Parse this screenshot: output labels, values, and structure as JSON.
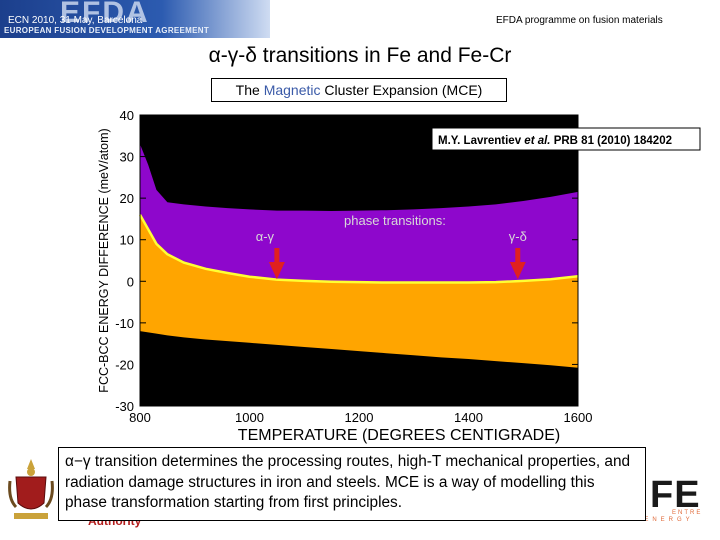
{
  "header": {
    "logo_text": "EFDA",
    "logo_subtitle": "EUROPEAN FUSION DEVELOPMENT AGREEMENT",
    "conference": "ECN 2010, 31 May, Barcelona",
    "programme": "EFDA programme on fusion materials"
  },
  "slide": {
    "title": "α-γ-δ transitions in Fe and Fe-Cr",
    "subtitle_pre": "The ",
    "subtitle_magnetic": "Magnetic",
    "subtitle_post": " Cluster Expansion (MCE)",
    "caption": "α−γ transition determines the processing routes, high-T mechanical properties, and radiation damage structures in iron and steels. MCE is a way of modelling this phase transformation starting from first principles."
  },
  "footer": {
    "authority_text": "Authority",
    "ccfe_big": "FE",
    "ccfe_small": "FUSION ENERGY",
    "ccfe_small2": "ENTRE"
  },
  "colors": {
    "banner": "#1c3f8c",
    "black_region": "#000000",
    "purple_band": "#8e07cc",
    "orange_band": "#ffa500",
    "curve": "#ffff33",
    "arrow": "#e02020",
    "annotation_text": "#d8d8d8"
  },
  "chart_data": {
    "type": "area",
    "xlabel": "TEMPERATURE (DEGREES CENTIGRADE)",
    "ylabel": "FCC-BCC ENERGY DIFFERENCE (meV/atom)",
    "xlim": [
      800,
      1600
    ],
    "ylim": [
      -30,
      40
    ],
    "xticks": [
      800,
      1000,
      1200,
      1400,
      1600
    ],
    "yticks": [
      -30,
      -20,
      -10,
      0,
      10,
      20,
      30,
      40
    ],
    "reference": "M.Y. Lavrentiev et al. PRB  81 (2010) 184202",
    "reference_parts": {
      "authors": "M.Y. Lavrentiev ",
      "etal": "et al.",
      "journal": " PRB  81 (2010) 184202"
    },
    "annotations": {
      "phase_transitions": "phase transitions:",
      "alpha_gamma": "α-γ",
      "gamma_delta": "γ-δ"
    },
    "transitions": [
      1050,
      1490
    ],
    "x": [
      800,
      815,
      830,
      850,
      880,
      920,
      960,
      1000,
      1050,
      1100,
      1150,
      1200,
      1250,
      1300,
      1350,
      1400,
      1450,
      1500,
      1550,
      1600
    ],
    "series": [
      {
        "name": "",
        "values": [
          33,
          28,
          22,
          19,
          18.5,
          18,
          17.6,
          17.3,
          17,
          17,
          16.9,
          17,
          17.1,
          17.3,
          17.6,
          18,
          18.5,
          19.3,
          20.3,
          21.5
        ]
      },
      {
        "name": "",
        "values": [
          16,
          12.5,
          9,
          6.5,
          4.5,
          3,
          2,
          1.1,
          0.4,
          0.1,
          -0.1,
          -0.2,
          -0.3,
          -0.3,
          -0.3,
          -0.3,
          -0.2,
          0.1,
          0.5,
          1.2
        ]
      },
      {
        "name": "",
        "values": [
          -12,
          -12.3,
          -12.6,
          -13,
          -13.5,
          -14,
          -14.4,
          -14.8,
          -15.3,
          -15.8,
          -16.3,
          -16.8,
          -17.3,
          -17.8,
          -18.3,
          -18.7,
          -19.2,
          -19.7,
          -20.2,
          -20.8
        ]
      }
    ]
  }
}
